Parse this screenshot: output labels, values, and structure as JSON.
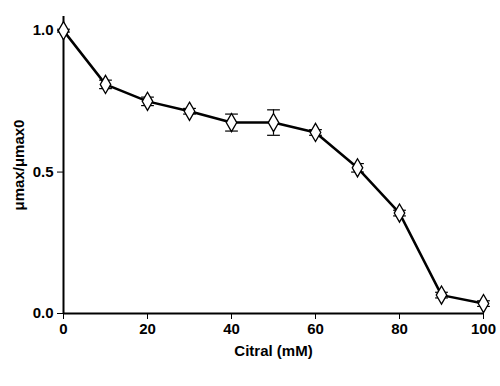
{
  "chart_data": {
    "type": "line",
    "xlabel": "Citral (mM)",
    "ylabel": "μmax/μmax0",
    "x": [
      0,
      10,
      20,
      30,
      40,
      50,
      60,
      70,
      80,
      90,
      100
    ],
    "values": [
      1.0,
      0.81,
      0.75,
      0.715,
      0.675,
      0.675,
      0.64,
      0.515,
      0.355,
      0.065,
      0.035
    ],
    "errors": [
      0.005,
      0.015,
      0.015,
      0.01,
      0.03,
      0.045,
      0.01,
      0.015,
      0.01,
      0.01,
      0.01
    ],
    "xlim": [
      0,
      100
    ],
    "ylim": [
      0,
      1.05
    ],
    "xticks": [
      0,
      20,
      40,
      60,
      80,
      100
    ],
    "yticks": [
      {
        "value": 0,
        "label": "0.0"
      },
      {
        "value": 0.5,
        "label": "0.5"
      },
      {
        "value": 1,
        "label": "1.0"
      }
    ],
    "color": "#000000",
    "marker": "diamond",
    "grid": false
  }
}
